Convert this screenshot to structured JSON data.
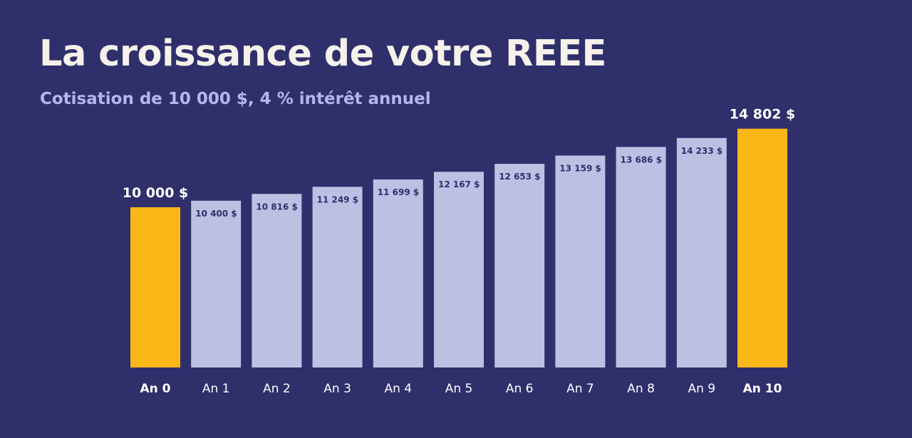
{
  "title": "La croissance de votre REEE",
  "subtitle": "Cotisation de 10 000 $, 4 % intérêt annuel",
  "colors": {
    "background": "#2e2f6b",
    "highlight_bar": "#fbb618",
    "regular_bar": "#bdc0e3",
    "inner_label": "#2e2f6b",
    "title": "#f6f1ea",
    "subtitle": "#b7b5f1",
    "axis_label": "#ffffff"
  },
  "chart_data": {
    "type": "bar",
    "title": "La croissance de votre REEE",
    "subtitle": "Cotisation de 10 000 $, 4 % intérêt annuel",
    "categories": [
      "An 0",
      "An 1",
      "An 2",
      "An 3",
      "An 4",
      "An 5",
      "An 6",
      "An 7",
      "An 8",
      "An 9",
      "An 10"
    ],
    "values": [
      10000,
      10400,
      10816,
      11249,
      11699,
      12167,
      12653,
      13159,
      13686,
      14233,
      14802
    ],
    "value_labels": [
      "10 000 $",
      "10 400 $",
      "10 816 $",
      "11 249 $",
      "11 699 $",
      "12 167 $",
      "12 653 $",
      "13 159 $",
      "13 686 $",
      "14 233 $",
      "14 802 $"
    ],
    "highlighted": [
      0,
      10
    ],
    "xlabel": "",
    "ylabel": "",
    "grid": false
  }
}
